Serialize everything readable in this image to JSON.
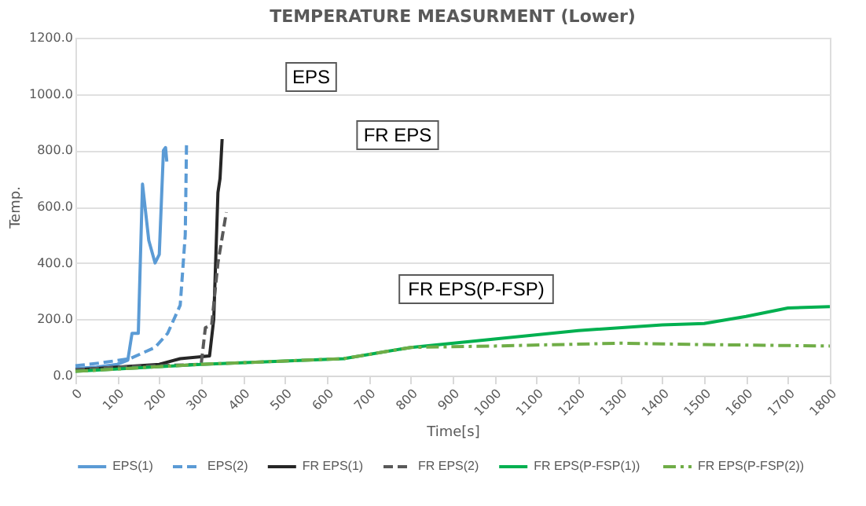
{
  "chart_data": {
    "type": "line",
    "title": "TEMPERATURE MEASURMENT (Lower)",
    "xlabel": "Time[s]",
    "ylabel": "Temp.",
    "xlim": [
      0,
      1800
    ],
    "xticks": [
      0,
      100,
      200,
      300,
      400,
      500,
      600,
      700,
      800,
      900,
      1000,
      1100,
      1200,
      1300,
      1400,
      1500,
      1600,
      1700,
      1800
    ],
    "ylim": [
      0,
      1200
    ],
    "yticks": [
      {
        "value": 0,
        "label": "0.0"
      },
      {
        "value": 200,
        "label": "200.0"
      },
      {
        "value": 400,
        "label": "400.0"
      },
      {
        "value": 600,
        "label": "600.0"
      },
      {
        "value": 800,
        "label": "800.0"
      },
      {
        "value": 1000,
        "label": "1000.0"
      },
      {
        "value": 1200,
        "label": "1200.0"
      }
    ],
    "grid": "y",
    "legend": "bottom",
    "marker": "none",
    "annotations": [
      "EPS",
      "FR EPS",
      "FR EPS(P-FSP)"
    ],
    "series": [
      {
        "name": "EPS(1)",
        "color": "#5b9bd5",
        "line_style": "solid",
        "x": [
          0,
          50,
          100,
          125,
          135,
          150,
          160,
          175,
          190,
          200,
          210,
          215,
          218
        ],
        "values": [
          25,
          30,
          40,
          55,
          150,
          150,
          680,
          480,
          400,
          430,
          800,
          810,
          760
        ]
      },
      {
        "name": "EPS(2)",
        "color": "#5b9bd5",
        "line_style": "dashed",
        "x": [
          0,
          60,
          130,
          190,
          220,
          250,
          262,
          265
        ],
        "values": [
          35,
          45,
          60,
          100,
          150,
          250,
          500,
          820
        ]
      },
      {
        "name": "FR EPS(1)",
        "color": "#262626",
        "line_style": "solid",
        "x": [
          0,
          100,
          200,
          250,
          320,
          330,
          340,
          345,
          350
        ],
        "values": [
          20,
          30,
          40,
          60,
          70,
          200,
          650,
          700,
          840
        ]
      },
      {
        "name": "FR EPS(2)",
        "color": "#595959",
        "line_style": "dashed",
        "x": [
          0,
          100,
          200,
          300,
          310,
          325,
          340,
          360
        ],
        "values": [
          20,
          30,
          35,
          40,
          170,
          180,
          400,
          580
        ]
      },
      {
        "name": "FR EPS(P-FSP(1))",
        "color": "#00b050",
        "line_style": "solid",
        "x": [
          0,
          300,
          640,
          800,
          1000,
          1200,
          1400,
          1500,
          1600,
          1700,
          1800
        ],
        "values": [
          15,
          40,
          60,
          100,
          130,
          160,
          180,
          185,
          210,
          240,
          245
        ]
      },
      {
        "name": "FR EPS(P-FSP(2))",
        "color": "#70ad47",
        "line_style": "dashdot",
        "x": [
          0,
          300,
          640,
          800,
          1000,
          1300,
          1500,
          1800
        ],
        "values": [
          15,
          40,
          60,
          100,
          105,
          115,
          110,
          105
        ]
      }
    ]
  }
}
